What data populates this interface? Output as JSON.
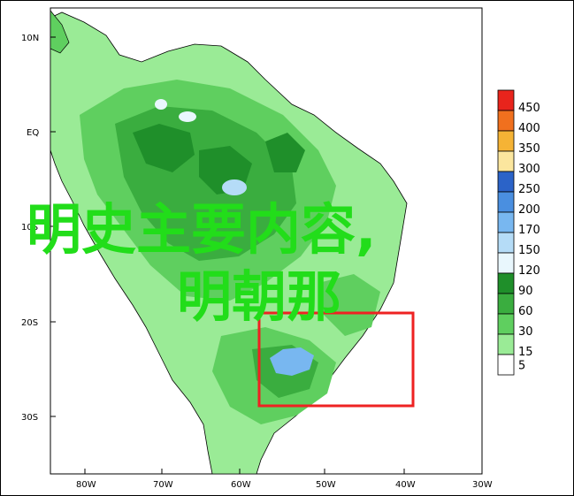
{
  "map": {
    "lat_labels": [
      "10N",
      "EQ",
      "10S",
      "20S",
      "30S"
    ],
    "lon_labels": [
      "80W",
      "70W",
      "60W",
      "50W",
      "40W",
      "30W"
    ]
  },
  "legend": {
    "levels": [
      {
        "label": "450",
        "color": "#e8241c"
      },
      {
        "label": "400",
        "color": "#f0701e"
      },
      {
        "label": "350",
        "color": "#f5b335"
      },
      {
        "label": "300",
        "color": "#fbe69e"
      },
      {
        "label": "250",
        "color": "#2b63c8"
      },
      {
        "label": "200",
        "color": "#4a8fe0"
      },
      {
        "label": "170",
        "color": "#78b7f0"
      },
      {
        "label": "150",
        "color": "#b5dcf7"
      },
      {
        "label": "120",
        "color": "#e9f7fd"
      },
      {
        "label": "90",
        "color": "#1f8f2a"
      },
      {
        "label": "60",
        "color": "#3aad3f"
      },
      {
        "label": "30",
        "color": "#5fcf5f"
      },
      {
        "label": "15",
        "color": "#9aeb96"
      },
      {
        "label": "5",
        "color": "#ffffff"
      }
    ]
  },
  "overlay": {
    "line1": "明史主要内容,",
    "line2": "明朝那"
  },
  "highlight_color": "#ee2222"
}
